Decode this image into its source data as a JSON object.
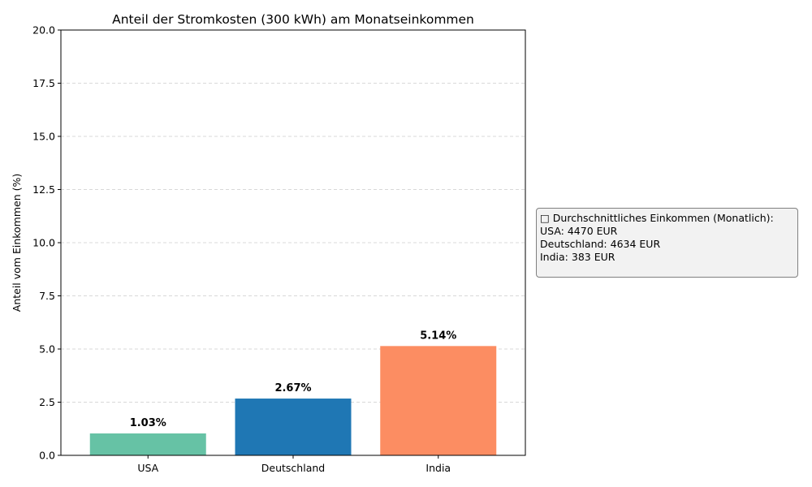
{
  "chart_data": {
    "type": "bar",
    "title": "Anteil der Stromkosten (300 kWh) am Monatseinkommen",
    "xlabel": "",
    "ylabel": "Anteil vom Einkommen (%)",
    "categories": [
      "USA",
      "Deutschland",
      "India"
    ],
    "values": [
      1.03,
      2.67,
      5.14
    ],
    "bar_labels": [
      "1.03%",
      "2.67%",
      "5.14%"
    ],
    "bar_colors": [
      "#66c2a5",
      "#1f77b4",
      "#fc8d62"
    ],
    "ylim": [
      0,
      20
    ],
    "yticks": [
      0,
      2.5,
      5,
      7.5,
      10,
      12.5,
      15,
      17.5,
      20
    ],
    "ytick_labels": [
      "0.0",
      "2.5",
      "5.0",
      "7.5",
      "10.0",
      "12.5",
      "15.0",
      "17.5",
      "20.0"
    ],
    "grid": {
      "axis": "y",
      "style": "dashed",
      "color": "#cccccc"
    }
  },
  "info_box": {
    "lines": [
      "□ Durchschnittliches Einkommen (Monatlich):",
      "USA: 4470 EUR",
      "Deutschland: 4634 EUR",
      "India: 383 EUR"
    ]
  }
}
